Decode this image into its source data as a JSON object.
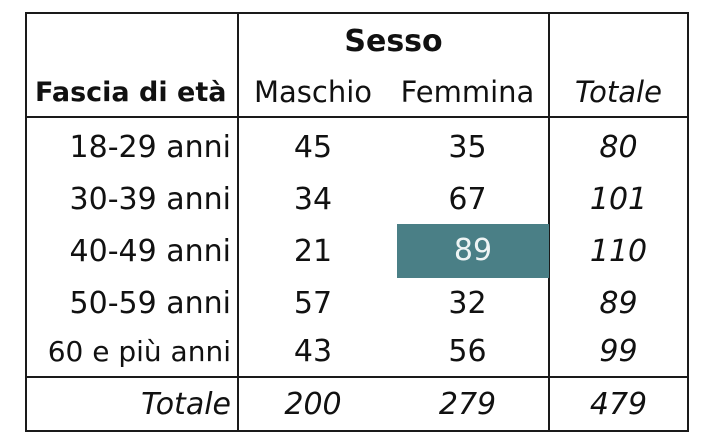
{
  "table": {
    "group_header": "Sesso",
    "row_header": "Fascia di età",
    "columns": [
      "Maschio",
      "Femmina",
      "Totale"
    ],
    "rows": [
      {
        "label": "18-29 anni",
        "values": [
          "45",
          "35",
          "80"
        ]
      },
      {
        "label": "30-39 anni",
        "values": [
          "34",
          "67",
          "101"
        ]
      },
      {
        "label": "40-49 anni",
        "values": [
          "21",
          "89",
          "110"
        ]
      },
      {
        "label": "50-59 anni",
        "values": [
          "57",
          "32",
          "89"
        ]
      },
      {
        "label": "60 e più anni",
        "values": [
          "43",
          "56",
          "99"
        ]
      }
    ],
    "total_row": {
      "label": "Totale",
      "values": [
        "200",
        "279",
        "479"
      ]
    },
    "highlight": {
      "row_label": "40-49 anni",
      "column": "Femmina",
      "color": "#4a7f86"
    }
  }
}
